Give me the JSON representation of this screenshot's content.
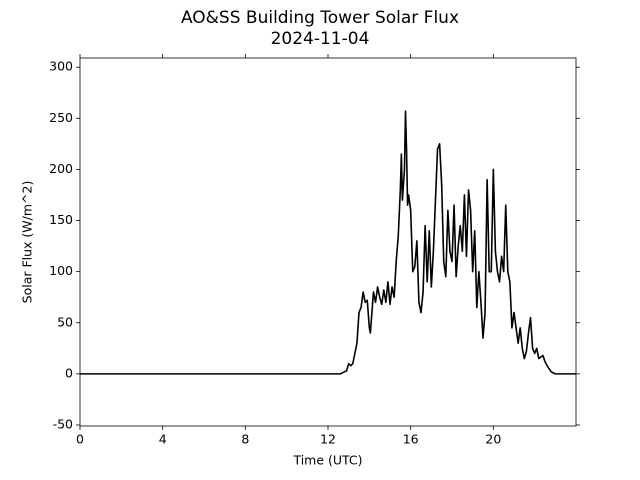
{
  "chart_data": {
    "type": "line",
    "title": "AO&SS Building Tower Solar Flux",
    "subtitle": "2024-11-04",
    "x_label": "Time (UTC)",
    "y_label": "Solar Flux (W/m^2)",
    "xlim": [
      0,
      24
    ],
    "ylim": [
      -51,
      309
    ],
    "xticks": [
      0,
      4,
      8,
      12,
      16,
      20
    ],
    "yticks": [
      -50,
      0,
      50,
      100,
      150,
      200,
      250,
      300
    ],
    "grid": false,
    "series": [
      {
        "name": "Solar Flux",
        "color": "#000000",
        "x": [
          0,
          12.6,
          12.7,
          12.9,
          13.0,
          13.1,
          13.2,
          13.4,
          13.5,
          13.6,
          13.7,
          13.8,
          13.9,
          14.0,
          14.05,
          14.2,
          14.3,
          14.4,
          14.5,
          14.6,
          14.7,
          14.8,
          14.9,
          15.0,
          15.1,
          15.2,
          15.3,
          15.4,
          15.5,
          15.55,
          15.6,
          15.7,
          15.75,
          15.8,
          15.85,
          15.9,
          16.0,
          16.1,
          16.2,
          16.3,
          16.4,
          16.5,
          16.6,
          16.7,
          16.8,
          16.9,
          17.0,
          17.1,
          17.2,
          17.3,
          17.4,
          17.5,
          17.6,
          17.7,
          17.8,
          17.9,
          18.0,
          18.1,
          18.2,
          18.3,
          18.4,
          18.5,
          18.6,
          18.7,
          18.8,
          18.9,
          19.0,
          19.1,
          19.2,
          19.3,
          19.4,
          19.5,
          19.6,
          19.7,
          19.8,
          19.9,
          20.0,
          20.1,
          20.2,
          20.3,
          20.4,
          20.5,
          20.6,
          20.7,
          20.8,
          20.9,
          21.0,
          21.1,
          21.2,
          21.3,
          21.4,
          21.5,
          21.6,
          21.7,
          21.8,
          21.9,
          22.0,
          22.1,
          22.2,
          22.4,
          22.5,
          22.6,
          22.8,
          23.0,
          24
        ],
        "values": [
          0,
          0,
          1,
          3,
          10,
          8,
          10,
          30,
          60,
          65,
          80,
          70,
          72,
          45,
          40,
          80,
          70,
          85,
          75,
          68,
          82,
          70,
          90,
          68,
          85,
          75,
          110,
          135,
          180,
          215,
          170,
          200,
          257,
          220,
          165,
          175,
          160,
          100,
          105,
          130,
          70,
          60,
          80,
          145,
          90,
          140,
          85,
          120,
          170,
          220,
          225,
          185,
          110,
          95,
          160,
          120,
          110,
          165,
          95,
          125,
          145,
          120,
          175,
          115,
          180,
          160,
          100,
          140,
          65,
          100,
          70,
          35,
          60,
          190,
          100,
          100,
          200,
          120,
          100,
          90,
          115,
          100,
          165,
          100,
          90,
          45,
          60,
          45,
          30,
          45,
          25,
          15,
          22,
          40,
          55,
          25,
          20,
          25,
          15,
          18,
          12,
          8,
          2,
          0,
          0
        ]
      }
    ]
  }
}
